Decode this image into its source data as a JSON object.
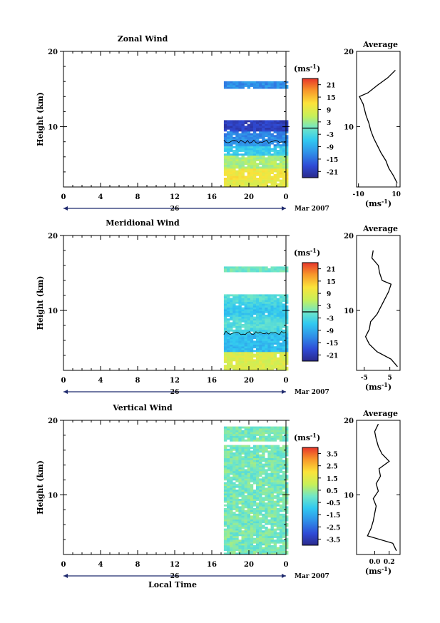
{
  "chart_data": [
    {
      "type": "heatmap",
      "title": "Zonal Wind",
      "ylabel": "Height (km)",
      "ylim": [
        2,
        20
      ],
      "yticks": [
        "10",
        "20"
      ],
      "xlim": [
        0,
        24
      ],
      "xticks": [
        "0",
        "4",
        "8",
        "12",
        "16",
        "20",
        "0"
      ],
      "date_label": "26",
      "month_label": "Mar 2007",
      "data_start_hour": 17.3,
      "colorbar": {
        "unit": "(ms",
        "unit_sup": "-1",
        "tick_labels": [
          "21",
          "15",
          "9",
          "3",
          "-3",
          "-9",
          "-15",
          "-21"
        ],
        "range": [
          -24,
          24
        ],
        "zero_line": true
      },
      "profile": {
        "title": "Average",
        "xlabel": "(ms",
        "xlabel_sup": "-1",
        "xlim": [
          -11,
          12
        ],
        "xticks": [
          "-10",
          "10"
        ],
        "heights": [
          2.5,
          3.5,
          4.5,
          5.5,
          6.5,
          7.5,
          8.5,
          9.5,
          10.5,
          11.5,
          12.5,
          13.0,
          13.5,
          14.0,
          14.5,
          15.5,
          16.5,
          17.5
        ],
        "values": [
          10.5,
          8.5,
          6.0,
          4.5,
          2.0,
          0.0,
          -2.0,
          -3.5,
          -4.5,
          -6.0,
          -7.0,
          -7.5,
          -8.5,
          -9.5,
          -5.0,
          0.0,
          5.5,
          9.5
        ]
      }
    },
    {
      "type": "heatmap",
      "title": "Meridional Wind",
      "ylabel": "Height (km)",
      "ylim": [
        2,
        20
      ],
      "yticks": [
        "10",
        "20"
      ],
      "xlim": [
        0,
        24
      ],
      "xticks": [
        "0",
        "4",
        "8",
        "12",
        "16",
        "20",
        "0"
      ],
      "date_label": "26",
      "month_label": "Mar 2007",
      "data_start_hour": 17.3,
      "colorbar": {
        "unit": "(ms",
        "unit_sup": "-1",
        "tick_labels": [
          "21",
          "15",
          "9",
          "3",
          "-3",
          "-9",
          "-15",
          "-21"
        ],
        "range": [
          -24,
          24
        ],
        "zero_line": true
      },
      "profile": {
        "title": "Average",
        "xlabel": "(ms",
        "xlabel_sup": "-1",
        "xlim": [
          -8,
          9
        ],
        "xticks": [
          "-5",
          "5"
        ],
        "heights": [
          2.5,
          3.5,
          4.5,
          5.5,
          6.5,
          7.5,
          8.5,
          9.5,
          10.5,
          11.5,
          12.5,
          13.5,
          14.0,
          15.0,
          16.0,
          17.0,
          18.0
        ],
        "values": [
          8.0,
          5.5,
          0.0,
          -3.0,
          -4.5,
          -3.0,
          -2.5,
          0.0,
          1.5,
          3.0,
          4.5,
          5.5,
          2.0,
          1.0,
          0.5,
          -2.0,
          -1.5
        ]
      }
    },
    {
      "type": "heatmap",
      "title": "Vertical Wind",
      "ylabel": "Height (km)",
      "ylim": [
        2,
        20
      ],
      "yticks": [
        "10",
        "20"
      ],
      "xlim": [
        0,
        24
      ],
      "xticks": [
        "0",
        "4",
        "8",
        "12",
        "16",
        "20",
        "0"
      ],
      "date_label": "26",
      "month_label": "Mar 2007",
      "xlabel": "Local Time",
      "data_start_hour": 17.3,
      "colorbar": {
        "unit": "(ms",
        "unit_sup": "-1",
        "tick_labels": [
          "3.5",
          "2.5",
          "1.5",
          "0.5",
          "-0.5",
          "-1.5",
          "-2.5",
          "-3.5"
        ],
        "range": [
          -4,
          4
        ],
        "zero_line": false
      },
      "profile": {
        "title": "Average",
        "xlabel": "(ms",
        "xlabel_sup": "-1",
        "xlim": [
          -0.25,
          0.35
        ],
        "xticks": [
          "0.0",
          "0.2"
        ],
        "heights": [
          2.5,
          3.5,
          4.5,
          5.5,
          6.5,
          7.5,
          8.5,
          9.5,
          10.5,
          11.5,
          12.5,
          13.5,
          14.5,
          15.5,
          16.5,
          17.5,
          18.5,
          19.5
        ],
        "values": [
          0.3,
          0.25,
          -0.1,
          -0.05,
          -0.02,
          0.0,
          0.02,
          -0.02,
          0.05,
          0.02,
          0.08,
          0.06,
          0.2,
          0.1,
          0.05,
          0.02,
          0.0,
          0.05
        ]
      }
    }
  ]
}
